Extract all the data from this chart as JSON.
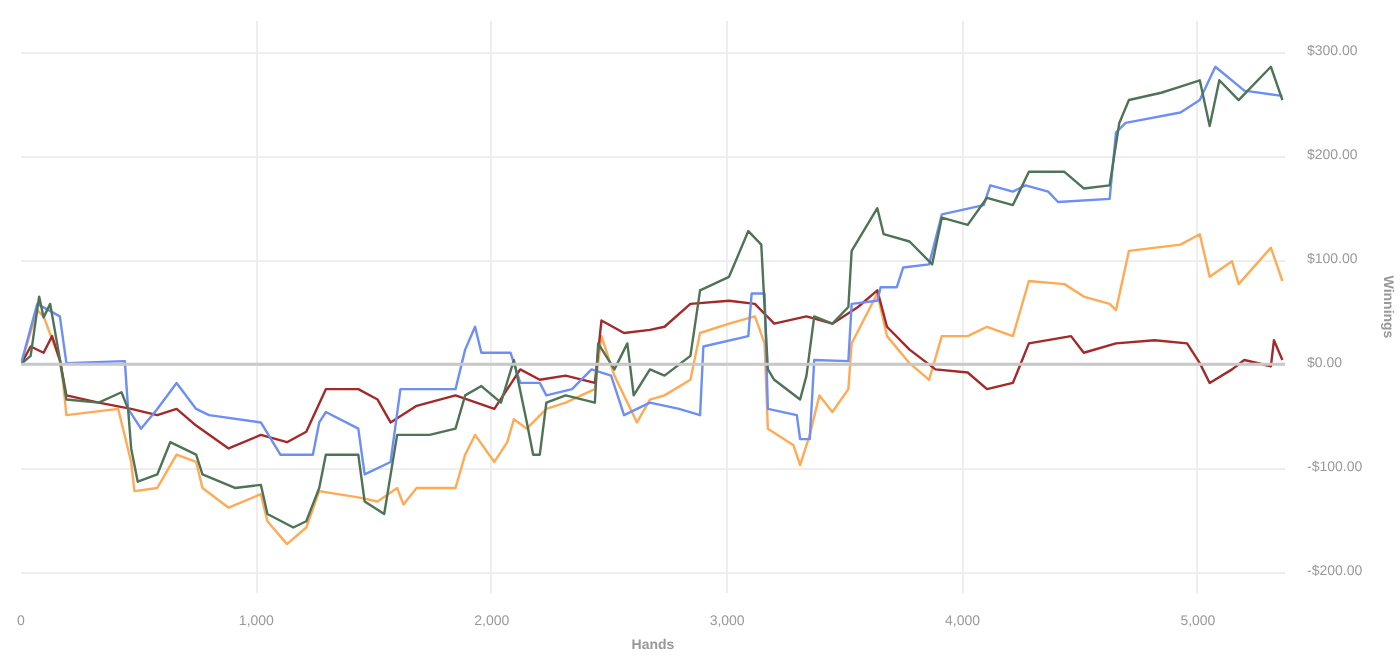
{
  "chart_data": {
    "type": "line",
    "xlabel": "Hands",
    "ylabel": "Winnings",
    "xlim": [
      0,
      5370
    ],
    "ylim": [
      -220,
      330
    ],
    "xticks": [
      {
        "value": 0,
        "label": "0"
      },
      {
        "value": 1000,
        "label": "1,000"
      },
      {
        "value": 2000,
        "label": "2,000"
      },
      {
        "value": 3000,
        "label": "3,000"
      },
      {
        "value": 4000,
        "label": "4,000"
      },
      {
        "value": 5000,
        "label": "5,000"
      }
    ],
    "yticks": [
      {
        "value": -200,
        "label": "-$200.00"
      },
      {
        "value": -100,
        "label": "-$100.00"
      },
      {
        "value": 0,
        "label": "$0.00"
      },
      {
        "value": 100,
        "label": "$100.00"
      },
      {
        "value": 200,
        "label": "$200.00"
      },
      {
        "value": 300,
        "label": "$300.00"
      }
    ],
    "grid": true,
    "ref_lines": [
      {
        "axis": "y",
        "value": 0,
        "color": "#c8c8c8"
      }
    ],
    "series": [
      {
        "color": "#ffaa55",
        "x": [
          0,
          69,
          96,
          165,
          179,
          193,
          413,
          468,
          482,
          579,
          661,
          744,
          771,
          882,
          1019,
          1047,
          1130,
          1212,
          1267,
          1433,
          1515,
          1598,
          1625,
          1681,
          1846,
          1887,
          1929,
          2011,
          2066,
          2094,
          2149,
          2232,
          2314,
          2438,
          2466,
          2521,
          2617,
          2672,
          2734,
          2844,
          2885,
          3008,
          3118,
          3159,
          3173,
          3282,
          3310,
          3351,
          3392,
          3447,
          3515,
          3529,
          3638,
          3679,
          3775,
          3858,
          3912,
          4022,
          4104,
          4214,
          4282,
          4433,
          4515,
          4625,
          4652,
          4707,
          4926,
          5008,
          5050,
          5145,
          5173,
          5310,
          5359
        ],
        "values": [
          0,
          52,
          46,
          4,
          -18,
          -49,
          -43,
          -94,
          -122,
          -119,
          -87,
          -94,
          -119,
          -138,
          -125,
          -151,
          -173,
          -157,
          -122,
          -128,
          -132,
          -119,
          -135,
          -119,
          -119,
          -87,
          -68,
          -94,
          -75,
          -53,
          -62,
          -43,
          -37,
          -24,
          27,
          -11,
          -56,
          -34,
          -30,
          -15,
          30,
          39,
          46,
          20,
          -62,
          -78,
          -97,
          -68,
          -30,
          -46,
          -24,
          20,
          68,
          27,
          1,
          -15,
          27,
          27,
          36,
          27,
          80,
          77,
          65,
          58,
          52,
          109,
          115,
          125,
          84,
          99,
          77,
          112,
          80
        ]
      },
      {
        "color": "#a32a2a",
        "x": [
          0,
          41,
          96,
          132,
          165,
          193,
          330,
          468,
          579,
          661,
          744,
          882,
          1019,
          1130,
          1212,
          1295,
          1433,
          1515,
          1570,
          1681,
          1846,
          2011,
          2121,
          2204,
          2314,
          2438,
          2466,
          2562,
          2672,
          2734,
          2844,
          3008,
          3118,
          3200,
          3337,
          3447,
          3556,
          3638,
          3679,
          3775,
          3885,
          4022,
          4104,
          4214,
          4282,
          4461,
          4515,
          4652,
          4816,
          4954,
          5008,
          5050,
          5145,
          5197,
          5310,
          5323,
          5359
        ],
        "values": [
          0,
          17,
          11,
          27,
          4,
          -30,
          -37,
          -43,
          -49,
          -43,
          -59,
          -81,
          -68,
          -75,
          -65,
          -24,
          -24,
          -34,
          -56,
          -40,
          -30,
          -43,
          -5,
          -15,
          -11,
          -18,
          42,
          30,
          33,
          36,
          58,
          61,
          58,
          39,
          46,
          39,
          55,
          71,
          36,
          14,
          -5,
          -8,
          -24,
          -18,
          20,
          27,
          11,
          20,
          23,
          20,
          1,
          -18,
          -5,
          4,
          -2,
          23,
          4
        ]
      },
      {
        "color": "#6d8ff5",
        "x": [
          0,
          69,
          165,
          193,
          441,
          455,
          510,
          579,
          661,
          744,
          799,
          1019,
          1102,
          1240,
          1267,
          1295,
          1433,
          1460,
          1570,
          1612,
          1736,
          1846,
          1887,
          1929,
          1956,
          2080,
          2121,
          2204,
          2232,
          2341,
          2424,
          2507,
          2562,
          2672,
          2796,
          2885,
          2899,
          3090,
          3104,
          3159,
          3173,
          3296,
          3310,
          3351,
          3370,
          3515,
          3529,
          3638,
          3652,
          3721,
          3748,
          3858,
          3912,
          4090,
          4118,
          4214,
          4268,
          4364,
          4406,
          4625,
          4652,
          4693,
          4926,
          5008,
          5074,
          5197,
          5359
        ],
        "values": [
          0,
          58,
          46,
          1,
          3,
          -43,
          -62,
          -43,
          -18,
          -43,
          -49,
          -56,
          -87,
          -87,
          -56,
          -46,
          -62,
          -106,
          -94,
          -24,
          -24,
          -24,
          14,
          36,
          11,
          11,
          -18,
          -18,
          -30,
          -24,
          -5,
          -11,
          -49,
          -37,
          -43,
          -49,
          17,
          27,
          68,
          68,
          -43,
          -49,
          -72,
          -72,
          4,
          3,
          58,
          61,
          74,
          74,
          93,
          96,
          144,
          153,
          172,
          166,
          172,
          166,
          156,
          159,
          223,
          232,
          242,
          254,
          286,
          263,
          258
        ]
      },
      {
        "color": "#4f7356",
        "x": [
          0,
          41,
          77,
          96,
          124,
          165,
          193,
          330,
          427,
          455,
          468,
          496,
          579,
          634,
          744,
          771,
          909,
          1019,
          1047,
          1157,
          1212,
          1267,
          1295,
          1433,
          1460,
          1543,
          1598,
          1736,
          1846,
          1887,
          1956,
          2039,
          2094,
          2149,
          2176,
          2204,
          2232,
          2314,
          2438,
          2452,
          2521,
          2576,
          2603,
          2672,
          2734,
          2844,
          2885,
          3008,
          3090,
          3145,
          3173,
          3200,
          3310,
          3337,
          3370,
          3447,
          3515,
          3529,
          3638,
          3665,
          3775,
          3871,
          3912,
          4022,
          4104,
          4214,
          4282,
          4433,
          4515,
          4625,
          4666,
          4707,
          4844,
          4926,
          5008,
          5050,
          5091,
          5173,
          5310,
          5359
        ],
        "values": [
          0,
          8,
          65,
          45,
          58,
          5,
          -34,
          -37,
          -27,
          -43,
          -81,
          -113,
          -106,
          -75,
          -87,
          -106,
          -119,
          -116,
          -144,
          -157,
          -151,
          -119,
          -87,
          -87,
          -132,
          -144,
          -68,
          -68,
          -62,
          -30,
          -21,
          -37,
          4,
          -56,
          -87,
          -87,
          -37,
          -30,
          -37,
          20,
          -5,
          20,
          -30,
          -5,
          -11,
          8,
          71,
          84,
          128,
          115,
          -5,
          -15,
          -34,
          -11,
          46,
          39,
          55,
          109,
          150,
          125,
          118,
          96,
          141,
          134,
          160,
          153,
          185,
          185,
          169,
          172,
          232,
          254,
          261,
          267,
          273,
          229,
          273,
          254,
          286,
          254
        ]
      }
    ]
  }
}
